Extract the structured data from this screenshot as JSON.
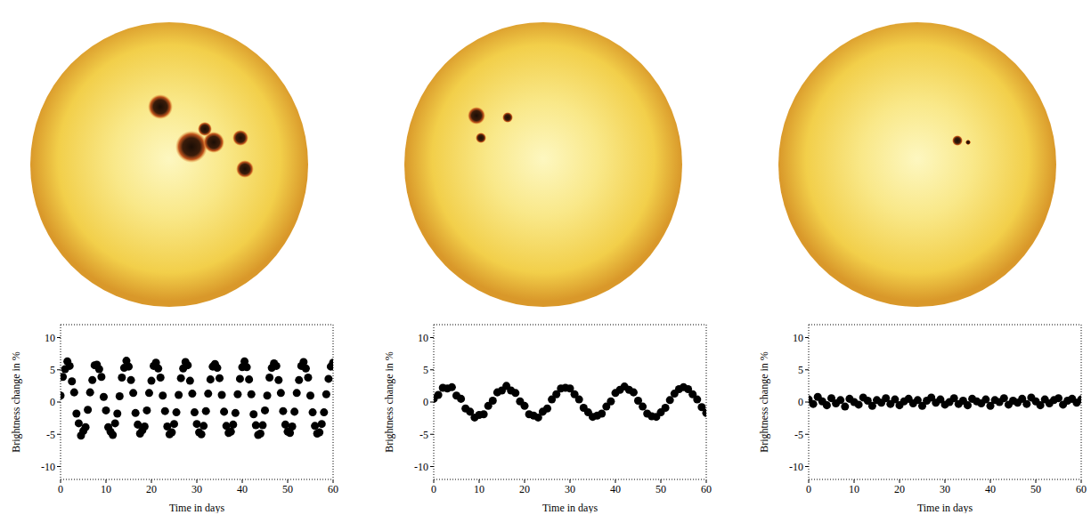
{
  "chart_data": [
    {
      "type": "scatter",
      "x_label": "Time in days",
      "y_label": "Brightness change in %",
      "color": "#000000",
      "marker": "circle",
      "xlim": [
        0,
        60
      ],
      "xticks": [
        0,
        10,
        20,
        30,
        40,
        50,
        60
      ],
      "ylim": [
        -12,
        12
      ],
      "yticks": [
        -10,
        -5,
        0,
        5,
        10
      ],
      "x": [
        0,
        0.5,
        1,
        1.5,
        2,
        2.5,
        3,
        3.5,
        4,
        4.5,
        5,
        5.5,
        6,
        6.5,
        7,
        7.5,
        8,
        8.5,
        9,
        9.5,
        10,
        10.5,
        11,
        11.5,
        12,
        12.5,
        13,
        13.5,
        14,
        14.5,
        15,
        15.5,
        16,
        16.5,
        17,
        17.5,
        18,
        18.5,
        19,
        19.5,
        20,
        20.5,
        21,
        21.5,
        22,
        22.5,
        23,
        23.5,
        24,
        24.5,
        25,
        25.5,
        26,
        26.5,
        27,
        27.5,
        28,
        28.5,
        29,
        29.5,
        30,
        30.5,
        31,
        31.5,
        32,
        32.5,
        33,
        33.5,
        34,
        34.5,
        35,
        35.5,
        36,
        36.5,
        37,
        37.5,
        38,
        38.5,
        39,
        39.5,
        40,
        40.5,
        41,
        41.5,
        42,
        42.5,
        43,
        43.5,
        44,
        44.5,
        45,
        45.5,
        46,
        46.5,
        47,
        47.5,
        48,
        48.5,
        49,
        49.5,
        50,
        50.5,
        51,
        51.5,
        52,
        52.5,
        53,
        53.5,
        54,
        54.5,
        55,
        55.5,
        56,
        56.5,
        57,
        57.5,
        58,
        58.5,
        59,
        59.5,
        60
      ],
      "values": [
        1.0,
        3.9,
        5.1,
        6.3,
        5.6,
        3.2,
        1.5,
        -1.8,
        -3.3,
        -5.2,
        -4.5,
        -3.9,
        -1.2,
        1.5,
        3.4,
        5.7,
        5.8,
        5.1,
        3.9,
        0.8,
        -1.3,
        -3.9,
        -4.6,
        -5.1,
        -3.3,
        -1.8,
        0.9,
        3.8,
        5.3,
        6.4,
        5.5,
        3.4,
        1.4,
        -1.7,
        -3.5,
        -4.9,
        -4.4,
        -3.8,
        -1.3,
        1.4,
        3.3,
        5.6,
        6.1,
        5.2,
        3.8,
        1.0,
        -1.4,
        -3.8,
        -5.0,
        -4.7,
        -3.4,
        -1.6,
        1.1,
        3.7,
        5.2,
        6.2,
        5.7,
        3.3,
        1.3,
        -1.6,
        -3.4,
        -4.7,
        -5.0,
        -3.7,
        -1.4,
        1.3,
        3.5,
        5.5,
        5.9,
        5.3,
        3.7,
        1.1,
        -1.5,
        -3.7,
        -4.8,
        -4.6,
        -3.5,
        -1.7,
        1.2,
        3.6,
        5.4,
        6.3,
        5.4,
        3.5,
        1.2,
        -1.9,
        -3.6,
        -5.1,
        -4.9,
        -3.6,
        -1.3,
        1.0,
        3.8,
        5.3,
        6.0,
        5.6,
        3.4,
        1.4,
        -1.4,
        -3.5,
        -4.6,
        -4.8,
        -3.8,
        -1.5,
        1.4,
        3.4,
        5.6,
        6.2,
        5.2,
        3.8,
        1.0,
        -1.6,
        -3.7,
        -4.9,
        -4.7,
        -3.4,
        -1.6,
        1.2,
        3.6,
        5.5,
        6.1
      ]
    },
    {
      "type": "scatter",
      "x_label": "Time in days",
      "y_label": "Brightness change in %",
      "color": "#000000",
      "marker": "circle",
      "xlim": [
        0,
        60
      ],
      "xticks": [
        0,
        10,
        20,
        30,
        40,
        50,
        60
      ],
      "ylim": [
        -12,
        12
      ],
      "yticks": [
        -10,
        -5,
        0,
        5,
        10
      ],
      "x": [
        0,
        1,
        2,
        3,
        4,
        5,
        6,
        7,
        8,
        9,
        10,
        11,
        12,
        13,
        14,
        15,
        16,
        17,
        18,
        19,
        20,
        21,
        22,
        23,
        24,
        25,
        26,
        27,
        28,
        29,
        30,
        31,
        32,
        33,
        34,
        35,
        36,
        37,
        38,
        39,
        40,
        41,
        42,
        43,
        44,
        45,
        46,
        47,
        48,
        49,
        50,
        51,
        52,
        53,
        54,
        55,
        56,
        57,
        58,
        59,
        60
      ],
      "values": [
        0.5,
        1.1,
        2.2,
        2.1,
        2.3,
        1.0,
        0.5,
        -1.0,
        -1.5,
        -2.4,
        -2.0,
        -1.9,
        -0.6,
        0.2,
        1.5,
        1.8,
        2.5,
        1.8,
        1.4,
        0.1,
        -0.6,
        -1.9,
        -2.1,
        -2.4,
        -1.5,
        -1.0,
        0.4,
        1.2,
        2.1,
        2.2,
        2.1,
        1.2,
        0.4,
        -0.9,
        -1.6,
        -2.3,
        -2.1,
        -1.8,
        -0.7,
        0.1,
        1.4,
        1.9,
        2.4,
        1.9,
        1.5,
        0.2,
        -0.7,
        -1.8,
        -2.2,
        -2.3,
        -1.6,
        -0.9,
        0.3,
        1.3,
        2.0,
        2.3,
        2.0,
        1.2,
        0.4,
        -0.8,
        -1.7
      ]
    },
    {
      "type": "scatter",
      "x_label": "Time in days",
      "y_label": "Brightness change in %",
      "color": "#000000",
      "marker": "circle",
      "xlim": [
        0,
        60
      ],
      "xticks": [
        0,
        10,
        20,
        30,
        40,
        50,
        60
      ],
      "ylim": [
        -12,
        12
      ],
      "yticks": [
        -10,
        -5,
        0,
        5,
        10
      ],
      "x": [
        0,
        1,
        2,
        3,
        4,
        5,
        6,
        7,
        8,
        9,
        10,
        11,
        12,
        13,
        14,
        15,
        16,
        17,
        18,
        19,
        20,
        21,
        22,
        23,
        24,
        25,
        26,
        27,
        28,
        29,
        30,
        31,
        32,
        33,
        34,
        35,
        36,
        37,
        38,
        39,
        40,
        41,
        42,
        43,
        44,
        45,
        46,
        47,
        48,
        49,
        50,
        51,
        52,
        53,
        54,
        55,
        56,
        57,
        58,
        59,
        60
      ],
      "values": [
        0.4,
        -0.3,
        0.8,
        0.1,
        -0.5,
        0.6,
        -0.2,
        0.3,
        -0.7,
        0.5,
        0.0,
        -0.4,
        0.7,
        0.2,
        -0.6,
        0.3,
        -0.1,
        0.6,
        -0.3,
        0.4,
        -0.5,
        0.1,
        0.5,
        -0.2,
        0.3,
        -0.6,
        0.2,
        0.7,
        -0.1,
        0.4,
        -0.4,
        0.0,
        0.6,
        -0.3,
        0.2,
        -0.5,
        0.5,
        0.1,
        -0.2,
        0.4,
        -0.6,
        0.3,
        0.0,
        0.6,
        -0.4,
        0.2,
        -0.1,
        0.5,
        -0.3,
        0.7,
        0.1,
        -0.5,
        0.4,
        -0.2,
        0.3,
        0.6,
        -0.4,
        0.2,
        0.5,
        -0.1,
        0.4
      ]
    }
  ]
}
